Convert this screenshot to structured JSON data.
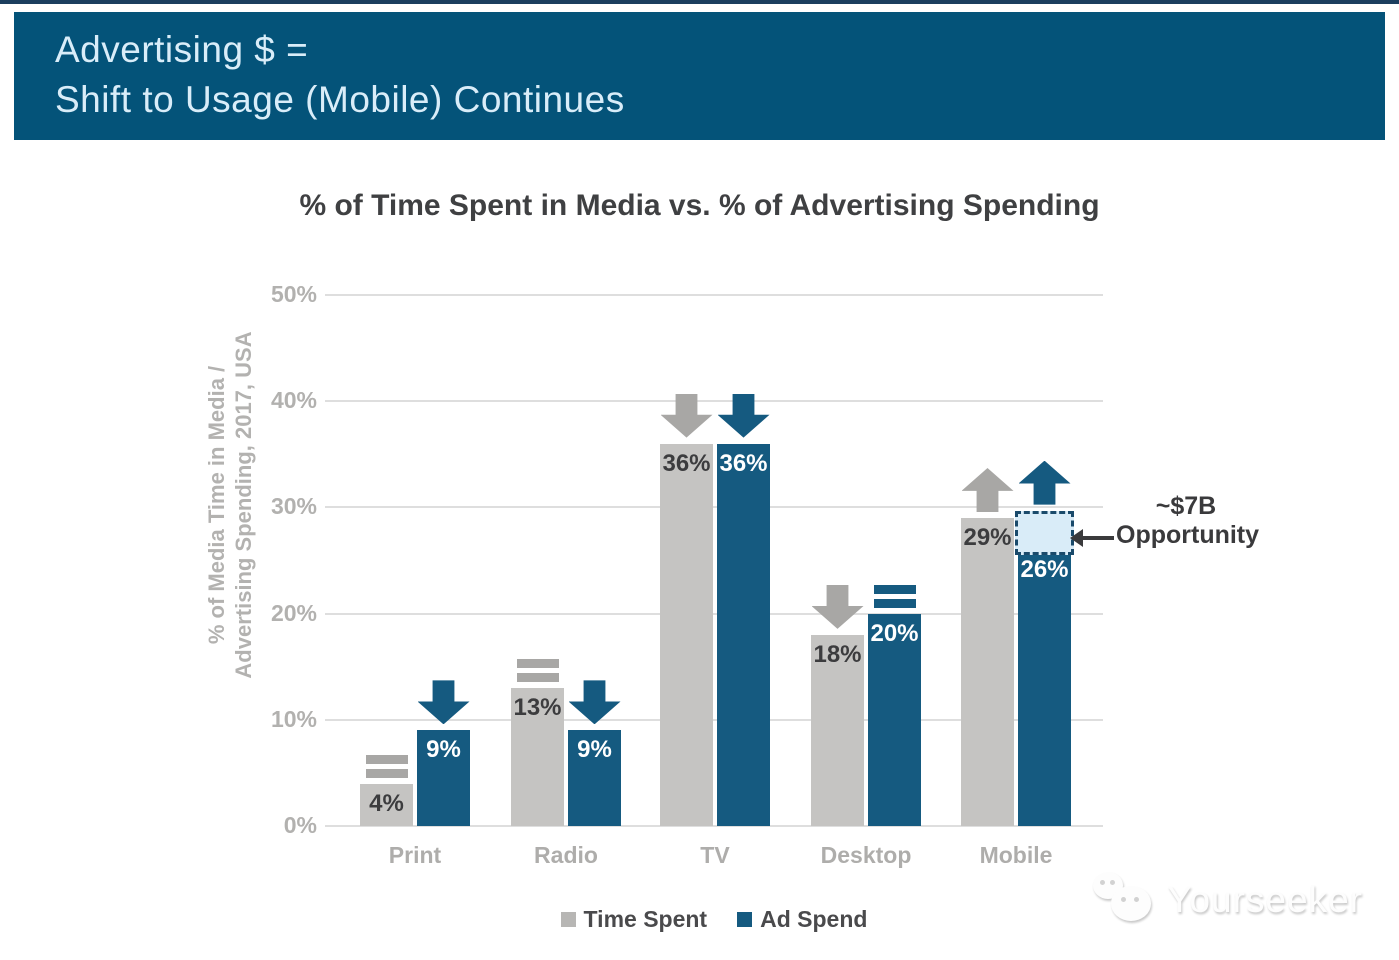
{
  "banner": {
    "line1": "Advertising $ =",
    "line2": "Shift to Usage (Mobile) Continues"
  },
  "chart_data": {
    "type": "bar",
    "title": "% of Time Spent in Media vs. % of Advertising Spending",
    "ylabel_line1": "% of Media Time in Media /",
    "ylabel_line2": "Advertising Spending, 2017, USA",
    "xlabel": "",
    "ylim": [
      0,
      50
    ],
    "yticks": [
      0,
      10,
      20,
      30,
      40,
      50
    ],
    "ytick_labels": [
      "0%",
      "10%",
      "20%",
      "30%",
      "40%",
      "50%"
    ],
    "grid": "horizontal",
    "legend_position": "bottom",
    "categories": [
      "Print",
      "Radio",
      "TV",
      "Desktop",
      "Mobile"
    ],
    "series": [
      {
        "name": "Time Spent",
        "color": "#c5c4c2",
        "values": [
          4,
          13,
          36,
          18,
          29
        ],
        "value_labels": [
          "4%",
          "13%",
          "36%",
          "18%",
          "29%"
        ],
        "value_label_color": "#3c3c3e",
        "trend_markers": [
          "equal",
          "equal",
          "down",
          "down",
          "up"
        ],
        "marker_color": "#a8a7a5"
      },
      {
        "name": "Ad Spend",
        "color": "#155a80",
        "values": [
          9,
          9,
          36,
          20,
          26
        ],
        "value_labels": [
          "9%",
          "9%",
          "36%",
          "20%",
          "26%"
        ],
        "value_label_color": "#ffffff",
        "trend_markers": [
          "down",
          "down",
          "down",
          "equal",
          "up"
        ],
        "marker_color": "#155a80"
      }
    ],
    "annotation": {
      "line1": "~$7B",
      "line2": "Opportunity",
      "applies_to_category": "Mobile",
      "applies_to_series": "Ad Spend",
      "gap_top_pct": 29.7,
      "box_fill": "#d9ecf8",
      "box_border": "#1a4a6b"
    }
  },
  "colors": {
    "top_line": "#1c3e5e",
    "banner_bg": "#045379",
    "banner_text": "#d9edf9",
    "title_text": "#3f4042",
    "grid": "#dedede",
    "axis_text": "#b2b1af",
    "annotation_text": "#3a3a3c"
  },
  "watermark": {
    "text": "Yourseeker",
    "logo": "wechat-bubbles"
  }
}
